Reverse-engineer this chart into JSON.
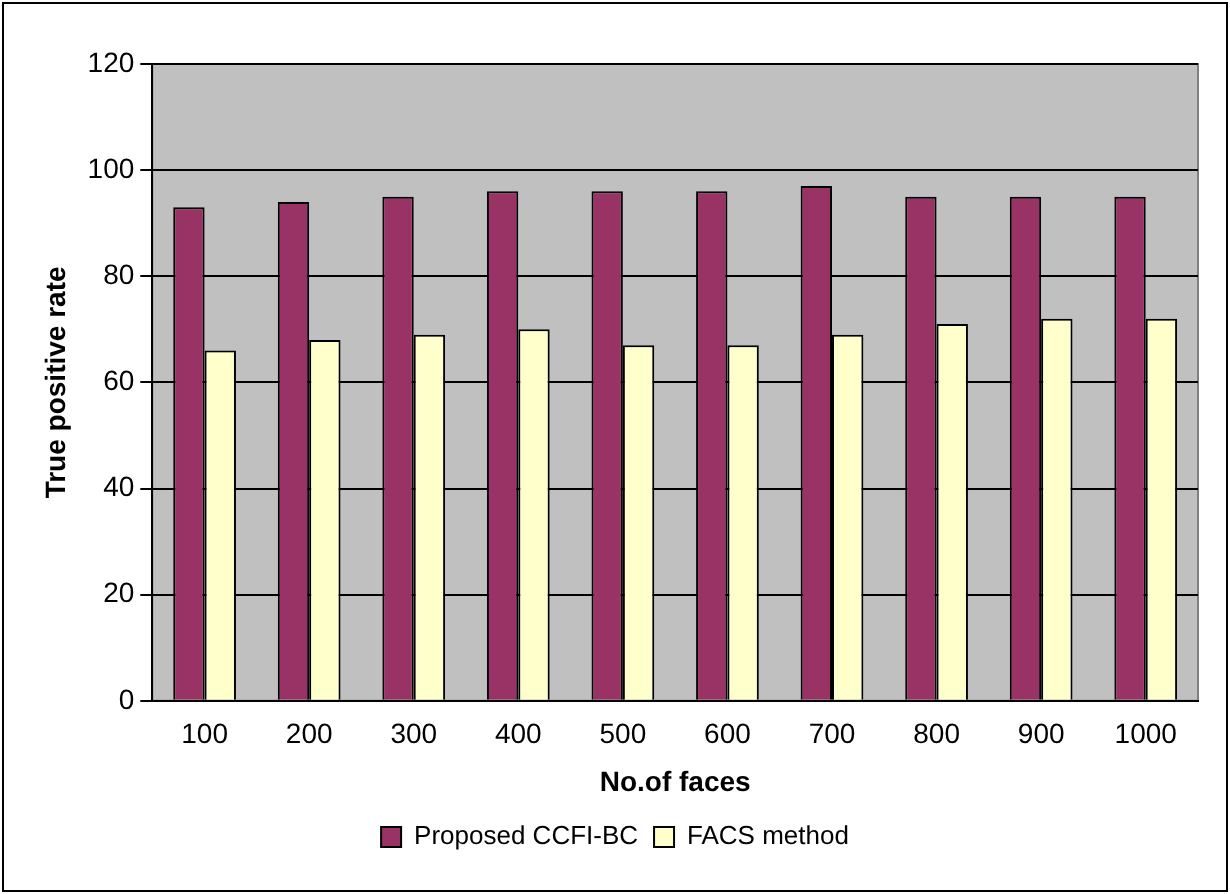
{
  "chart_data": {
    "type": "bar",
    "xlabel": "No.of faces",
    "ylabel": "True positive rate",
    "categories": [
      "100",
      "200",
      "300",
      "400",
      "500",
      "600",
      "700",
      "800",
      "900",
      "1000"
    ],
    "series": [
      {
        "name": "Proposed CCFI-BC",
        "color": "#993366",
        "values": [
          93,
          94,
          95,
          96,
          96,
          96,
          97,
          95,
          95,
          95
        ]
      },
      {
        "name": "FACS method",
        "color": "#ffffcc",
        "values": [
          66,
          68,
          69,
          70,
          67,
          67,
          69,
          71,
          72,
          72
        ]
      }
    ],
    "ylim": [
      0,
      120
    ],
    "yticks": [
      0,
      20,
      40,
      60,
      80,
      100,
      120
    ],
    "grid": "y",
    "legend": "bottom"
  }
}
